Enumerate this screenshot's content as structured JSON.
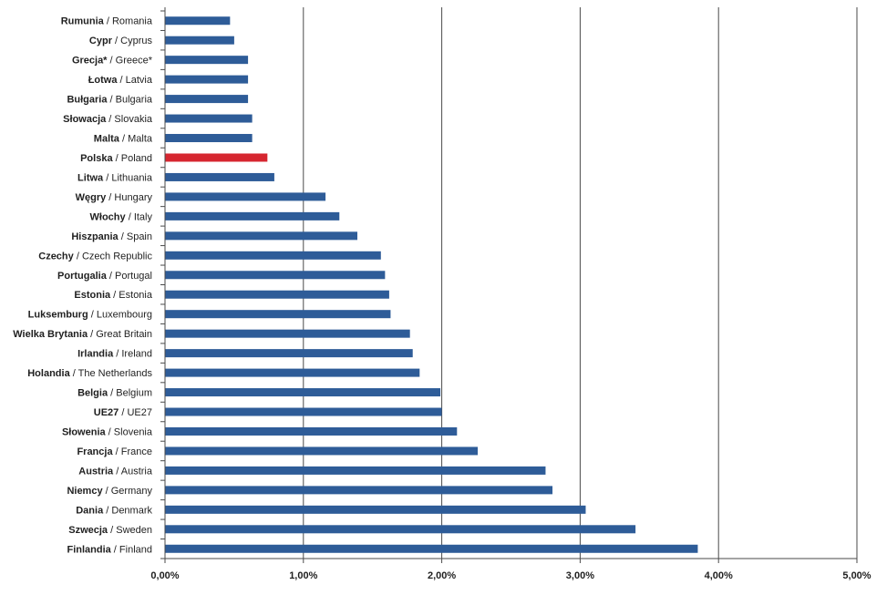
{
  "chart_data": {
    "type": "bar",
    "orientation": "horizontal",
    "title": "",
    "xlabel": "",
    "ylabel": "",
    "xlim": [
      0,
      5
    ],
    "ticks": [
      "0,00%",
      "1,00%",
      "2,00%",
      "3,00%",
      "4,00%",
      "5,00%"
    ],
    "grid": true,
    "colors": {
      "default": "#2E5C98",
      "highlight": "#D62630"
    },
    "categories": [
      {
        "pl": "Rumunia",
        "en": "Romania",
        "value": 0.47
      },
      {
        "pl": "Cypr",
        "en": "Cyprus",
        "value": 0.5
      },
      {
        "pl": "Grecja*",
        "en": "Greece*",
        "value": 0.6
      },
      {
        "pl": "Łotwa",
        "en": "Latvia",
        "value": 0.6
      },
      {
        "pl": "Bułgaria",
        "en": "Bulgaria",
        "value": 0.6
      },
      {
        "pl": "Słowacja",
        "en": "Slovakia",
        "value": 0.63
      },
      {
        "pl": "Malta",
        "en": "Malta",
        "value": 0.63
      },
      {
        "pl": "Polska",
        "en": "Poland",
        "value": 0.74,
        "highlight": true
      },
      {
        "pl": "Litwa",
        "en": "Lithuania",
        "value": 0.79
      },
      {
        "pl": "Węgry",
        "en": "Hungary",
        "value": 1.16
      },
      {
        "pl": "Włochy",
        "en": "Italy",
        "value": 1.26
      },
      {
        "pl": "Hiszpania",
        "en": "Spain",
        "value": 1.39
      },
      {
        "pl": "Czechy",
        "en": "Czech Republic",
        "value": 1.56
      },
      {
        "pl": "Portugalia",
        "en": "Portugal",
        "value": 1.59
      },
      {
        "pl": "Estonia",
        "en": "Estonia",
        "value": 1.62
      },
      {
        "pl": "Luksemburg",
        "en": "Luxembourg",
        "value": 1.63
      },
      {
        "pl": "Wielka Brytania",
        "en": "Great Britain",
        "value": 1.77
      },
      {
        "pl": "Irlandia",
        "en": "Ireland",
        "value": 1.79
      },
      {
        "pl": "Holandia",
        "en": "The Netherlands",
        "value": 1.84
      },
      {
        "pl": "Belgia",
        "en": "Belgium",
        "value": 1.99
      },
      {
        "pl": "UE27",
        "en": "UE27",
        "value": 2.0
      },
      {
        "pl": "Słowenia",
        "en": "Slovenia",
        "value": 2.11
      },
      {
        "pl": "Francja",
        "en": "France",
        "value": 2.26
      },
      {
        "pl": "Austria",
        "en": "Austria",
        "value": 2.75
      },
      {
        "pl": "Niemcy",
        "en": "Germany",
        "value": 2.8
      },
      {
        "pl": "Dania",
        "en": "Denmark",
        "value": 3.04
      },
      {
        "pl": "Szwecja",
        "en": "Sweden",
        "value": 3.4
      },
      {
        "pl": "Finlandia",
        "en": "Finland",
        "value": 3.85
      }
    ]
  }
}
